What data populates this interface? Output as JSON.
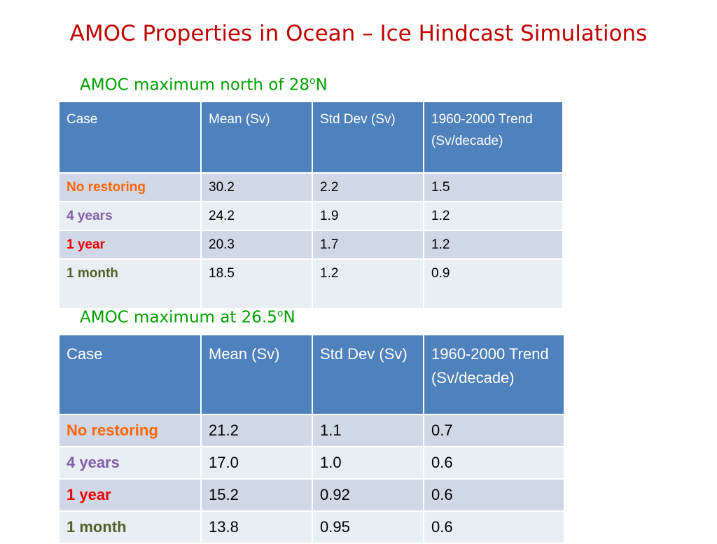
{
  "title": "AMOC Properties in Ocean – Ice Hindcast Simulations",
  "tables": [
    {
      "heading": "AMOC maximum north of 28",
      "heading_deg": "o",
      "heading_suffix": "N",
      "headers": [
        "Case",
        "Mean (Sv)",
        "Std Dev (Sv)",
        "1960-2000 Trend (Sv/decade)"
      ],
      "rows": [
        {
          "case": "No restoring",
          "case_color": "#ff6600",
          "mean": "30.2",
          "std": "2.2",
          "trend": "1.5"
        },
        {
          "case": "4 years",
          "case_color": "#7f5fa8",
          "mean": "24.2",
          "std": "1.9",
          "trend": "1.2"
        },
        {
          "case": "1 year",
          "case_color": "#ee0000",
          "mean": "20.3",
          "std": "1.7",
          "trend": "1.2"
        },
        {
          "case": "1 month",
          "case_color": "#4f6228",
          "mean": "18.5",
          "std": "1.2",
          "trend": "0.9"
        }
      ]
    },
    {
      "heading": "AMOC maximum at 26.5",
      "heading_deg": "o",
      "heading_suffix": "N",
      "headers": [
        "Case",
        "Mean (Sv)",
        "Std Dev (Sv)",
        "1960-2000 Trend (Sv/decade)"
      ],
      "rows": [
        {
          "case": "No restoring",
          "case_color": "#ff6600",
          "mean": "21.2",
          "std": "1.1",
          "trend": "0.7"
        },
        {
          "case": "4 years",
          "case_color": "#7f5fa8",
          "mean": "17.0",
          "std": "1.0",
          "trend": "0.6"
        },
        {
          "case": "1 year",
          "case_color": "#ee0000",
          "mean": "15.2",
          "std": "0.92",
          "trend": "0.6"
        },
        {
          "case": "1 month",
          "case_color": "#4f6228",
          "mean": "13.8",
          "std": "0.95",
          "trend": "0.6"
        }
      ]
    }
  ]
}
